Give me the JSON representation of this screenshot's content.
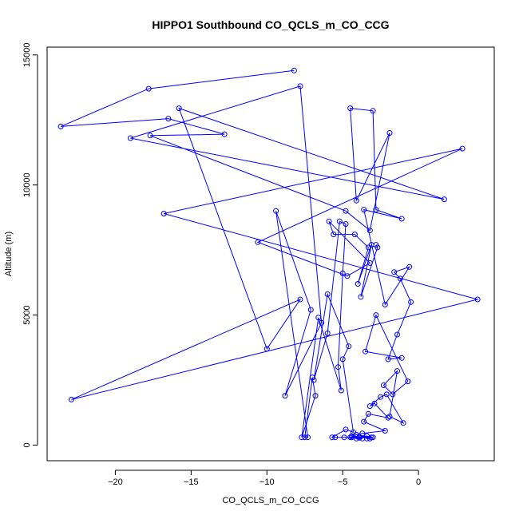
{
  "chart_data": {
    "type": "scatter",
    "title": "HIPPO1 Southbound CO_QCLS_m_CO_CCG",
    "xlabel": "CO_QCLS_m_CO_CCG",
    "ylabel": "Altitude (m)",
    "xlim": [
      -24.5,
      5.0
    ],
    "ylim": [
      -600,
      15300
    ],
    "xticks": [
      -20,
      -15,
      -10,
      -5,
      0
    ],
    "yticks": [
      0,
      5000,
      10000,
      15000
    ],
    "xtick_labels": [
      "−20",
      "−15",
      "−10",
      "−5",
      "0"
    ],
    "ytick_labels": [
      "0",
      "5000",
      "10000",
      "15000"
    ],
    "grid": false,
    "color": "#0000ff",
    "series": [
      {
        "x": [
          -8.2,
          -17.8,
          -23.6,
          -16.5,
          -12.8,
          -17.7,
          -4.8,
          -3.2,
          -1.9,
          -4.1,
          -4.5,
          -3.0,
          -2.8,
          -1.1,
          -3.6,
          -2.2,
          -0.6,
          -1.6,
          -1.2,
          -0.5,
          -1.4,
          -2.0,
          -1.1,
          -3.5,
          -2.8,
          -0.7,
          -1.7,
          -2.3,
          -1.4,
          -1.9,
          -1.0,
          -2.1,
          -2.5,
          -3.2,
          -2.9,
          -2.0,
          -3.3,
          -3.6,
          -2.2,
          -3.7,
          -4.1,
          -4.5,
          -3.4,
          -3.1,
          -3.9,
          -4.4,
          -3.2,
          -3.4,
          -3.0,
          -3.9,
          -4.1,
          -4.4,
          -3.7,
          -4.9,
          -5.5,
          -5.7,
          -4.8,
          -4.3,
          -5.0,
          -4.6,
          -6.0,
          -6.9,
          -6.0,
          -5.2,
          -4.8,
          -5.0,
          -5.3,
          -5.1,
          -6.6,
          -7.7,
          -6.8,
          -7.0,
          -7.5,
          -7.3,
          -9.4,
          -7.1,
          -8.8,
          -6.4,
          -7.8,
          -19.0,
          1.7,
          -15.8,
          -10.0,
          -7.8,
          -22.9,
          3.9,
          -16.8,
          2.9,
          -10.6,
          -4.7,
          -3.2,
          -5.9,
          -5.6,
          -4.2,
          -3.3,
          -4.0,
          -3.1,
          -3.8,
          -2.7,
          -2.8
        ],
        "y": [
          14400,
          13700,
          12250,
          12550,
          11950,
          11900,
          9000,
          8250,
          12000,
          9400,
          12950,
          12850,
          9050,
          8700,
          9050,
          5400,
          6850,
          6650,
          6400,
          5500,
          4250,
          3300,
          3350,
          3600,
          5000,
          2450,
          1950,
          2300,
          2850,
          1100,
          850,
          1950,
          1850,
          1500,
          1600,
          1050,
          1200,
          900,
          550,
          450,
          400,
          300,
          350,
          300,
          320,
          350,
          250,
          250,
          300,
          280,
          250,
          300,
          250,
          300,
          300,
          300,
          600,
          500,
          3300,
          3800,
          5800,
          2500,
          4300,
          8600,
          8500,
          6600,
          3000,
          2100,
          4900,
          300,
          1900,
          2600,
          300,
          300,
          9000,
          5200,
          1900,
          4700,
          13800,
          11800,
          9450,
          12950,
          3700,
          5600,
          1750,
          5600,
          8900,
          11400,
          7800,
          6500,
          7000,
          8600,
          8100,
          8100,
          7600,
          6200,
          7700,
          5700,
          7600,
          7700
        ]
      }
    ]
  }
}
